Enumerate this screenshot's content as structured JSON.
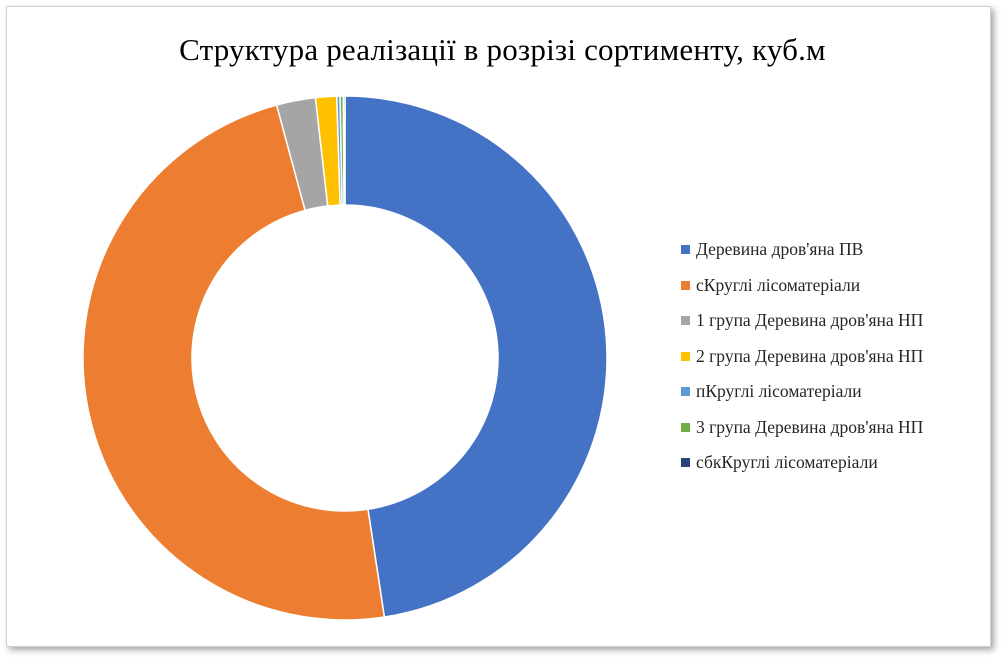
{
  "chart_data": {
    "type": "donut",
    "title": "Структура реалізації в розрізі сортименту, куб.м",
    "legend_position": "right",
    "series": [
      {
        "name": "Деревина дров'яна ПВ",
        "value": 47.6,
        "color": "#4472C4"
      },
      {
        "name": "сКруглі лісоматеріали",
        "value": 48.2,
        "color": "#ED7D31"
      },
      {
        "name": "1 група Деревина дров'яна НП",
        "value": 2.4,
        "color": "#A5A5A5"
      },
      {
        "name": "2 група Деревина дров'яна НП",
        "value": 1.3,
        "color": "#FFC000"
      },
      {
        "name": "пКруглі лісоматеріали",
        "value": 0.2,
        "color": "#5B9BD5"
      },
      {
        "name": "3 група Деревина дров'яна НП",
        "value": 0.2,
        "color": "#70AD47"
      },
      {
        "name": "сбкКруглі лісоматеріали",
        "value": 0.1,
        "color": "#264478"
      }
    ]
  }
}
